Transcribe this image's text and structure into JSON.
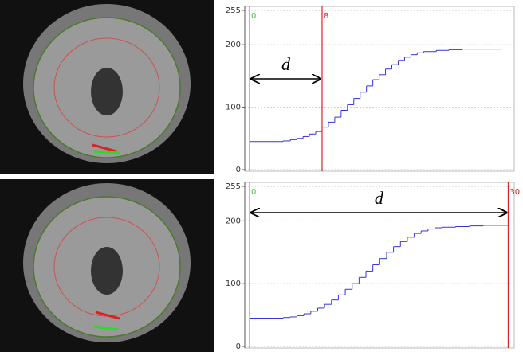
{
  "chart_data": [
    {
      "type": "line",
      "step": true,
      "annotation": "d",
      "xlim": [
        -0.53,
        29.2
      ],
      "ylim": [
        0,
        255
      ],
      "yticks": [
        0,
        100,
        200,
        255
      ],
      "grid": true,
      "markers": [
        {
          "value": 0,
          "color": "#33cc33"
        },
        {
          "value": 8,
          "color": "#dd2222"
        }
      ],
      "series": [
        {
          "color": "#3333dd",
          "x": [
            0,
            3.7,
            4.5,
            5.2,
            5.9,
            6.6,
            7.3,
            8.0,
            8.7,
            9.4,
            10.1,
            10.8,
            11.5,
            12.2,
            12.9,
            13.6,
            14.3,
            15.0,
            15.7,
            16.4,
            17.1,
            17.8,
            18.5,
            19.2,
            20.6,
            22.0,
            23.5,
            27.8
          ],
          "values": [
            45,
            46,
            48,
            50,
            53,
            57,
            61,
            68,
            76,
            84,
            95,
            104,
            114,
            124,
            134,
            144,
            152,
            161,
            168,
            175,
            180,
            184,
            187,
            189,
            191,
            192,
            193,
            193
          ]
        }
      ]
    },
    {
      "type": "line",
      "step": true,
      "annotation": "d",
      "xlim": [
        -0.56,
        30.7
      ],
      "ylim": [
        0,
        255
      ],
      "yticks": [
        0,
        100,
        200,
        255
      ],
      "grid": true,
      "markers": [
        {
          "value": 0,
          "color": "#33cc33"
        },
        {
          "value": 30,
          "color": "#dd2222"
        }
      ],
      "series": [
        {
          "color": "#3333dd",
          "x": [
            0,
            3.9,
            4.7,
            5.5,
            6.3,
            7.1,
            7.9,
            8.7,
            9.5,
            10.3,
            11.1,
            11.9,
            12.7,
            13.5,
            14.3,
            15.1,
            15.9,
            16.7,
            17.5,
            18.3,
            19.1,
            19.9,
            20.7,
            21.5,
            22.3,
            23.9,
            25.5,
            27.1,
            30
          ],
          "values": [
            45,
            46,
            47,
            49,
            52,
            56,
            61,
            67,
            74,
            82,
            91,
            100,
            110,
            120,
            130,
            140,
            150,
            159,
            167,
            174,
            180,
            184,
            187,
            189,
            190,
            191,
            192,
            193,
            193
          ]
        }
      ]
    }
  ]
}
